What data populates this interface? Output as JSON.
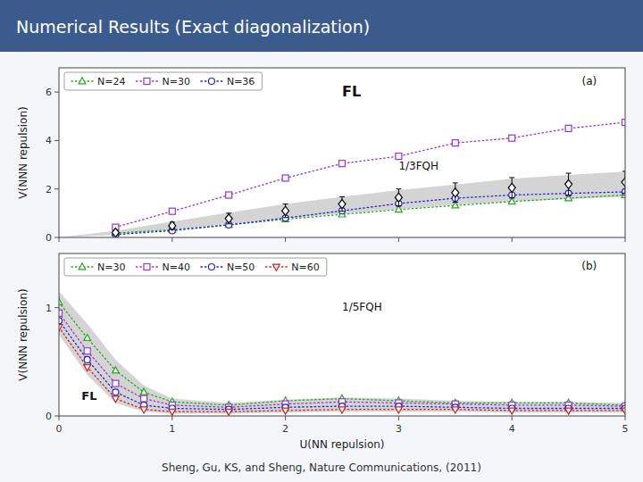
{
  "title": "Numerical Results (Exact diagonalization)",
  "caption": "Sheng, Gu, KS, and Sheng, Nature Communications, (2011)",
  "chart_data": [
    {
      "type": "line",
      "ylabel": "V(NNN repulsion)",
      "xlim": [
        0,
        5
      ],
      "ylim": [
        0,
        7
      ],
      "xticks": [
        0,
        1,
        2,
        3,
        4,
        5
      ],
      "yticks": [
        0,
        2,
        4,
        6
      ],
      "tick_labels": "y",
      "grid": false,
      "legend": "upper left",
      "annotations": [
        "FL",
        "1/3FQH",
        "(a)"
      ],
      "series": [
        {
          "type": "area",
          "color": "#aaaaaa",
          "x": [
            0.0,
            0.5,
            1.0,
            1.5,
            2.0,
            2.5,
            3.0,
            3.5,
            4.0,
            4.5,
            5.0
          ],
          "low": [
            0.0,
            0.1,
            0.32,
            0.55,
            0.78,
            0.98,
            1.18,
            1.35,
            1.48,
            1.58,
            1.68
          ],
          "high": [
            0.0,
            0.28,
            0.65,
            1.02,
            1.38,
            1.68,
            1.95,
            2.18,
            2.42,
            2.58,
            2.72
          ]
        },
        {
          "name": "N=24",
          "type": "line",
          "color": "#22aa22",
          "marker": "triangle",
          "line_style": "dotted",
          "x": [
            0.5,
            1.0,
            1.5,
            2.0,
            2.5,
            3.0,
            3.5,
            4.0,
            4.5,
            5.0
          ],
          "values": [
            0.18,
            0.32,
            0.52,
            0.75,
            0.95,
            1.15,
            1.32,
            1.48,
            1.62,
            1.75
          ]
        },
        {
          "name": "N=30",
          "type": "line",
          "color": "#9933cc",
          "marker": "square",
          "line_style": "dotted",
          "x": [
            0.5,
            1.0,
            1.5,
            2.0,
            2.5,
            3.0,
            3.5,
            4.0,
            4.5,
            5.0
          ],
          "values": [
            0.42,
            1.08,
            1.75,
            2.45,
            3.05,
            3.35,
            3.9,
            4.1,
            4.5,
            4.75
          ]
        },
        {
          "name": "N=36",
          "type": "line",
          "color": "#2222cc",
          "marker": "circle",
          "line_style": "dotted",
          "x": [
            0.5,
            1.0,
            1.5,
            2.0,
            2.5,
            3.0,
            3.5,
            4.0,
            4.5,
            5.0
          ],
          "values": [
            0.12,
            0.28,
            0.52,
            0.8,
            1.1,
            1.4,
            1.62,
            1.75,
            1.82,
            1.88
          ]
        },
        {
          "type": "scatter",
          "color": "#000000",
          "marker": "diamond",
          "x": [
            0.5,
            1.0,
            1.5,
            2.0,
            2.5,
            3.0,
            3.5,
            4.0,
            4.5,
            5.0
          ],
          "values": [
            0.2,
            0.48,
            0.78,
            1.1,
            1.38,
            1.65,
            1.85,
            2.05,
            2.2,
            2.28
          ],
          "errors": [
            0.1,
            0.15,
            0.22,
            0.28,
            0.3,
            0.35,
            0.4,
            0.42,
            0.45,
            0.45
          ]
        }
      ]
    },
    {
      "type": "line",
      "xlabel": "U(NN repulsion)",
      "ylabel": "V(NNN repulsion)",
      "xlim": [
        0,
        5
      ],
      "ylim": [
        0,
        1.5
      ],
      "xticks": [
        0,
        1,
        2,
        3,
        4,
        5
      ],
      "yticks": [
        0,
        1
      ],
      "grid": false,
      "legend": "upper left",
      "annotations": [
        "1/5FQH",
        "FL",
        "(b)"
      ],
      "series": [
        {
          "type": "area",
          "color": "#aaaaaa",
          "x": [
            0.0,
            0.25,
            0.5,
            0.75,
            1.0,
            1.5,
            2.0,
            2.5,
            3.0,
            3.5,
            4.0,
            4.5,
            5.0
          ],
          "low": [
            0.75,
            0.38,
            0.12,
            0.04,
            0.02,
            0.02,
            0.03,
            0.04,
            0.04,
            0.04,
            0.03,
            0.03,
            0.03
          ],
          "high": [
            1.15,
            0.85,
            0.52,
            0.28,
            0.16,
            0.12,
            0.15,
            0.17,
            0.16,
            0.14,
            0.13,
            0.13,
            0.12
          ]
        },
        {
          "name": "N=30",
          "type": "line",
          "color": "#22aa22",
          "marker": "triangle",
          "line_style": "dotted",
          "x": [
            0.0,
            0.25,
            0.5,
            0.75,
            1.0,
            1.5,
            2.0,
            2.5,
            3.0,
            3.5,
            4.0,
            4.5,
            5.0
          ],
          "values": [
            1.05,
            0.72,
            0.42,
            0.22,
            0.13,
            0.1,
            0.14,
            0.16,
            0.14,
            0.12,
            0.12,
            0.12,
            0.1
          ]
        },
        {
          "name": "N=40",
          "type": "line",
          "color": "#9933cc",
          "marker": "square",
          "line_style": "dotted",
          "x": [
            0.0,
            0.25,
            0.5,
            0.75,
            1.0,
            1.5,
            2.0,
            2.5,
            3.0,
            3.5,
            4.0,
            4.5,
            5.0
          ],
          "values": [
            0.95,
            0.6,
            0.3,
            0.16,
            0.1,
            0.08,
            0.11,
            0.13,
            0.12,
            0.11,
            0.1,
            0.1,
            0.09
          ]
        },
        {
          "name": "N=50",
          "type": "line",
          "color": "#2222cc",
          "marker": "circle",
          "line_style": "dotted",
          "x": [
            0.0,
            0.25,
            0.5,
            0.75,
            1.0,
            1.5,
            2.0,
            2.5,
            3.0,
            3.5,
            4.0,
            4.5,
            5.0
          ],
          "values": [
            0.88,
            0.52,
            0.22,
            0.1,
            0.07,
            0.06,
            0.08,
            0.09,
            0.09,
            0.08,
            0.07,
            0.07,
            0.07
          ]
        },
        {
          "name": "N=60",
          "type": "line",
          "color": "#cc2222",
          "marker": "triangle_down",
          "line_style": "dotted",
          "x": [
            0.0,
            0.25,
            0.5,
            0.75,
            1.0,
            1.5,
            2.0,
            2.5,
            3.0,
            3.5,
            4.0,
            4.5,
            5.0
          ],
          "values": [
            0.82,
            0.45,
            0.16,
            0.06,
            0.04,
            0.04,
            0.05,
            0.06,
            0.06,
            0.06,
            0.05,
            0.05,
            0.05
          ]
        }
      ]
    }
  ]
}
